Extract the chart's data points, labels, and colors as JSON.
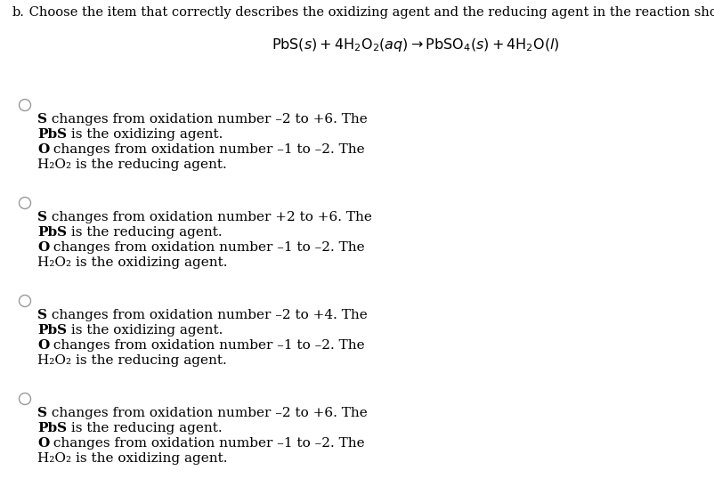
{
  "bg_color": "#ffffff",
  "title_b": "b.",
  "title_text": " Choose the item that correctly describes the oxidizing agent and the reducing agent in the reaction shown.",
  "options": [
    {
      "s_line": " changes from oxidation number –2 to +6. The",
      "pb_line": " is the oxidizing agent.",
      "o_line": " changes from oxidation number –1 to –2. The",
      "h_line": "H₂O₂ is the reducing agent."
    },
    {
      "s_line": " changes from oxidation number +2 to +6. The",
      "pb_line": " is the reducing agent.",
      "o_line": " changes from oxidation number –1 to –2. The",
      "h_line": "H₂O₂ is the oxidizing agent."
    },
    {
      "s_line": " changes from oxidation number –2 to +4. The",
      "pb_line": " is the oxidizing agent.",
      "o_line": " changes from oxidation number –1 to –2. The",
      "h_line": "H₂O₂ is the reducing agent."
    },
    {
      "s_line": " changes from oxidation number –2 to +6. The",
      "pb_line": " is the reducing agent.",
      "o_line": " changes from oxidation number –1 to –2. The",
      "h_line": "H₂O₂ is the oxidizing agent."
    }
  ],
  "font_size_title": 10.5,
  "font_size_eq": 11.5,
  "font_size_text": 11,
  "text_color": "#000000",
  "circle_color": "#999999"
}
